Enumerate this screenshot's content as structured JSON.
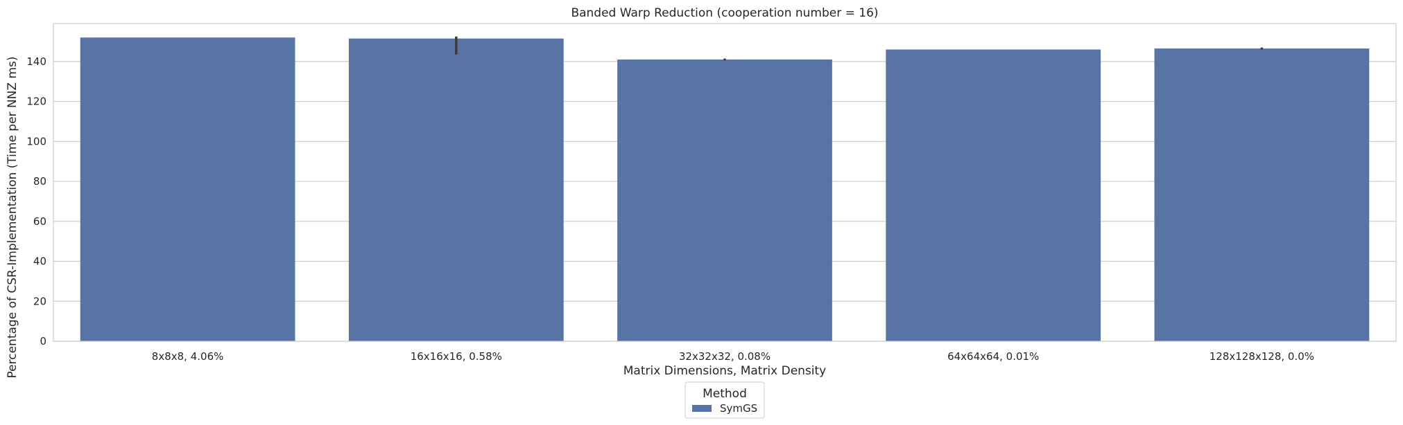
{
  "chart_data": {
    "type": "bar",
    "title": "Banded Warp Reduction (cooperation number = 16)",
    "xlabel": "Matrix Dimensions, Matrix Density",
    "ylabel": "Percentage of CSR-Implementation (Time per NNZ ms)",
    "categories": [
      "8x8x8, 4.06%",
      "16x16x16, 0.58%",
      "32x32x32, 0.08%",
      "64x64x64, 0.01%",
      "128x128x128, 0.0%"
    ],
    "series": [
      {
        "name": "SymGS",
        "values": [
          152,
          151.5,
          141,
          146,
          146.5
        ],
        "error": [
          [
            152,
            152
          ],
          [
            143.5,
            152.5
          ],
          [
            140.5,
            141.5
          ],
          [
            146,
            146
          ],
          [
            146,
            147
          ]
        ]
      }
    ],
    "ylim": [
      0,
      159
    ],
    "yticks": [
      0,
      20,
      40,
      60,
      80,
      100,
      120,
      140
    ],
    "grid": "horizontal",
    "legend": {
      "title": "Method",
      "placement": "bottom-center"
    },
    "colors": {
      "bar": "#5874a4",
      "grid": "#cccccc",
      "frame": "#cccccc",
      "errorbar": "#3b3b3b"
    }
  }
}
